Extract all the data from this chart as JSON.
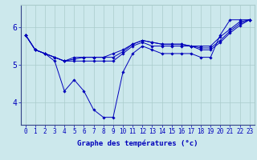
{
  "xlabel": "Graphe des temératures (°c)",
  "background_color": "#cce8ec",
  "line_color": "#0000bb",
  "grid_color": "#aacccc",
  "series": [
    [
      5.8,
      5.4,
      5.3,
      5.1,
      4.3,
      4.6,
      4.3,
      3.8,
      3.6,
      3.6,
      4.8,
      5.3,
      5.5,
      5.4,
      5.3,
      5.3,
      5.3,
      5.3,
      5.2,
      5.2,
      5.8,
      6.2,
      6.2,
      6.2
    ],
    [
      5.8,
      5.4,
      5.3,
      5.2,
      5.1,
      5.2,
      5.2,
      5.2,
      5.2,
      5.3,
      5.4,
      5.55,
      5.65,
      5.6,
      5.55,
      5.55,
      5.55,
      5.5,
      5.5,
      5.5,
      5.75,
      5.95,
      6.15,
      6.2
    ],
    [
      5.8,
      5.4,
      5.3,
      5.2,
      5.1,
      5.15,
      5.2,
      5.2,
      5.2,
      5.2,
      5.35,
      5.55,
      5.65,
      5.6,
      5.55,
      5.55,
      5.55,
      5.5,
      5.45,
      5.45,
      5.65,
      5.9,
      6.1,
      6.2
    ],
    [
      5.8,
      5.4,
      5.3,
      5.2,
      5.1,
      5.1,
      5.1,
      5.1,
      5.1,
      5.1,
      5.3,
      5.5,
      5.6,
      5.5,
      5.5,
      5.5,
      5.5,
      5.5,
      5.4,
      5.4,
      5.6,
      5.85,
      6.05,
      6.2
    ]
  ],
  "xlim": [
    -0.5,
    23.5
  ],
  "ylim": [
    3.4,
    6.6
  ],
  "xticks": [
    0,
    1,
    2,
    3,
    4,
    5,
    6,
    7,
    8,
    9,
    10,
    11,
    12,
    13,
    14,
    15,
    16,
    17,
    18,
    19,
    20,
    21,
    22,
    23
  ],
  "yticks": [
    4,
    5,
    6
  ],
  "xlabel_fontsize": 6.5,
  "tick_fontsize": 5.5
}
